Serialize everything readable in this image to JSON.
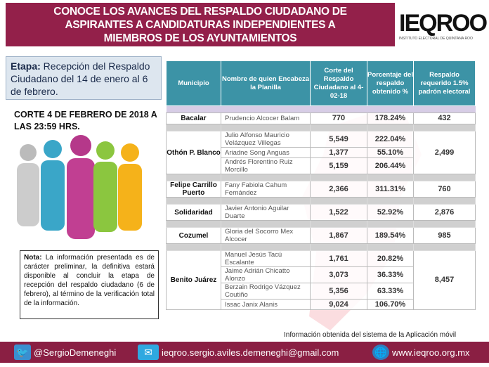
{
  "title": "CONOCE LOS AVANCES DEL RESPALDO CIUDADANO DE ASPIRANTES A CANDIDATURAS INDEPENDIENTES A MIEMBROS DE LOS AYUNTAMIENTOS",
  "title_lines": [
    "CONOCE LOS AVANCES DEL RESPALDO CIUDADANO DE",
    "ASPIRANTES  A CANDIDATURAS INDEPENDIENTES A",
    "MIEMBROS DE LOS AYUNTAMIENTOS"
  ],
  "logo": {
    "text": "IEQROO",
    "subtitle": "INSTITUTO ELECTORAL DE QUINTANA ROO"
  },
  "etapa": {
    "label": "Etapa:",
    "text": " Recepción del Respaldo Ciudadano del 14 de enero al 6 de febrero."
  },
  "corte": "CORTE 4 DE FEBRERO DE 2018 A LAS 23:59 HRS.",
  "nota": {
    "label": "Nota:",
    "text": " La información presentada es de carácter preliminar, la definitiva estará disponible al concluir la etapa de recepción del respaldo ciudadano (6 de febrero), al término de la verificación total de la información."
  },
  "table": {
    "headers": [
      "Municipio",
      "Nombre de quien Encabeza la Planilla",
      "Corte del Respaldo Ciudadano al 4-02-18",
      "Porcentaje del respaldo obtenido %",
      "Respaldo requerido 1.5% padrón electoral"
    ],
    "groups": [
      {
        "municipio": "Bacalar",
        "requerido": "432",
        "rows": [
          [
            "Prudencio Alcocer Balam",
            "770",
            "178.24%"
          ]
        ]
      },
      {
        "municipio": "Othón P. Blanco",
        "requerido": "2,499",
        "rows": [
          [
            "Julio Alfonso Mauricio Velázquez Villegas",
            "5,549",
            "222.04%"
          ],
          [
            "Ariadne Song Anguas",
            "1,377",
            "55.10%"
          ],
          [
            "Andrés Florentino Ruiz Morcillo",
            "5,159",
            "206.44%"
          ]
        ]
      },
      {
        "municipio": "Felipe Carrillo Puerto",
        "requerido": "760",
        "rows": [
          [
            "Fany Fabiola Cahum Fernández",
            "2,366",
            "311.31%"
          ]
        ]
      },
      {
        "municipio": "Solidaridad",
        "requerido": "2,876",
        "rows": [
          [
            "Javier Antonio Aguilar Duarte",
            "1,522",
            "52.92%"
          ]
        ]
      },
      {
        "municipio": "Cozumel",
        "requerido": "985",
        "rows": [
          [
            "Gloria del Socorro Mex Alcocer",
            "1,867",
            "189.54%"
          ]
        ]
      },
      {
        "municipio": "Benito Juárez",
        "requerido": "8,457",
        "rows": [
          [
            "Manuel Jesús Tacú Escalante",
            "1,761",
            "20.82%"
          ],
          [
            "Jaime Adrián Chicatto Alonzo",
            "3,073",
            "36.33%"
          ],
          [
            "Berzain Rodrigo Vázquez Coutiño",
            "5,356",
            "63.33%"
          ],
          [
            "Issac Janix Alanis",
            "9,024",
            "106.70%"
          ]
        ]
      }
    ]
  },
  "source": "Información obtenida del sistema de la Aplicación móvil",
  "footer": {
    "twitter": "@SergioDemeneghi",
    "email": "ieqroo.sergio.aviles.demeneghi@gmail.com",
    "web": "www.ieqroo.org.mx"
  },
  "colors": {
    "brand": "#93204a",
    "header": "#3c93a6",
    "map": "#f4a0a8"
  }
}
